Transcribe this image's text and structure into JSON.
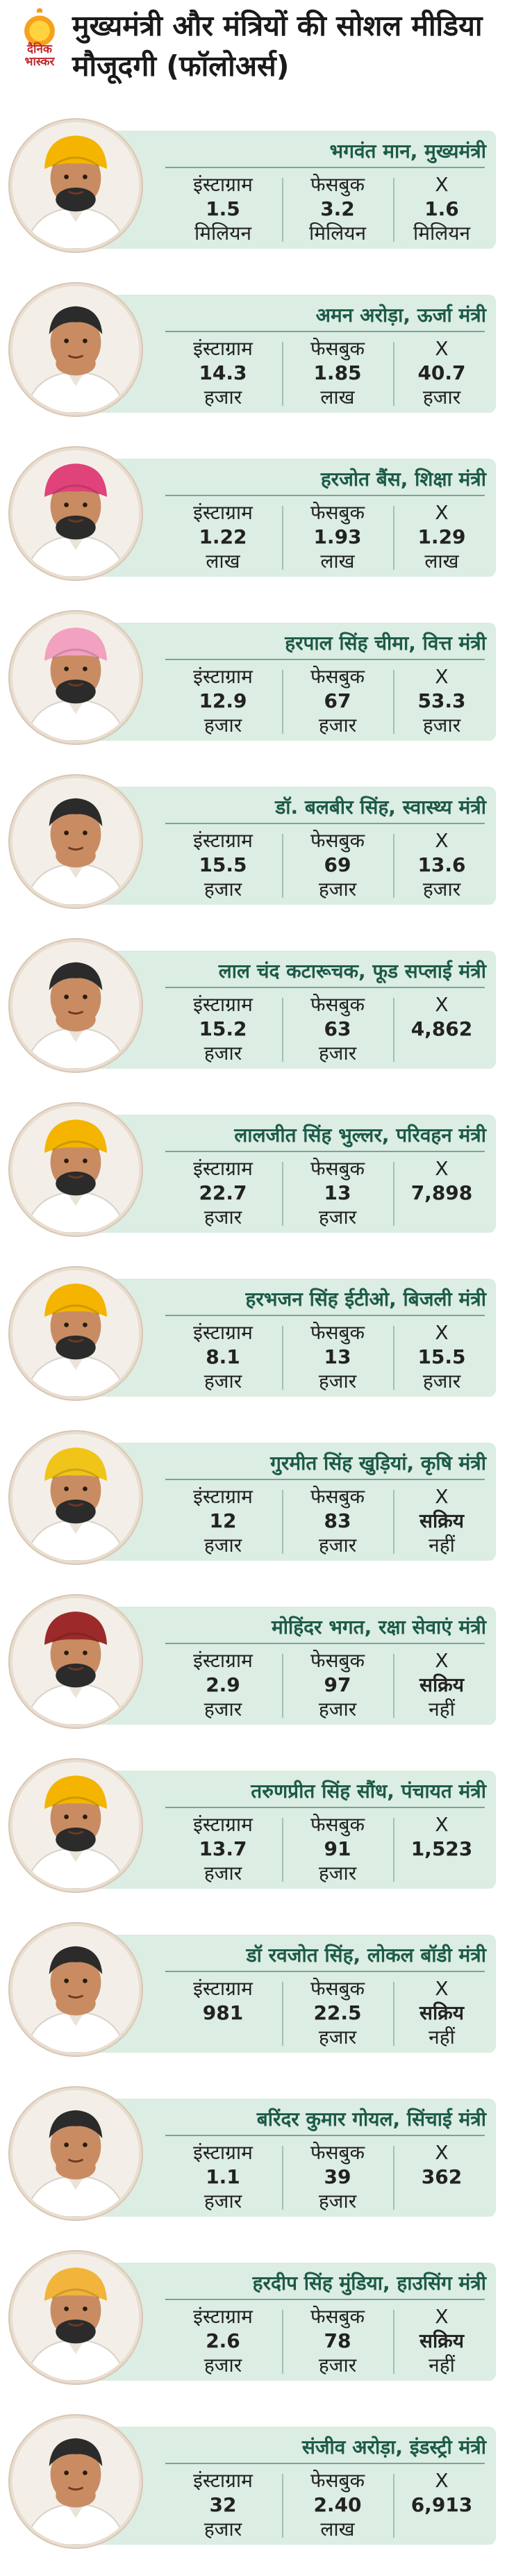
{
  "brand": {
    "logo_text_line1": "दैनिक",
    "logo_text_line2": "भास्कर"
  },
  "title": "मुख्यमंत्री और मंत्रियों की सोशल मीडिया मौजूदगी (फॉलोअर्स)",
  "labels": {
    "instagram": "इंस्टाग्राम",
    "facebook": "फेसबुक",
    "x": "X"
  },
  "colors": {
    "card_bg": "#dcede3",
    "name_text": "#1c5a48",
    "accent_logo": "#c0282d"
  },
  "entries": [
    {
      "name": "भगवंत मान, मुख्यमंत्री",
      "turban": "#f4b400",
      "instagram": {
        "value": "1.5",
        "unit": "मिलियन"
      },
      "facebook": {
        "value": "3.2",
        "unit": "मिलियन"
      },
      "x": {
        "value": "1.6",
        "unit": "मिलियन"
      }
    },
    {
      "name": "अमन अरोड़ा, ऊर्जा मंत्री",
      "turban": "",
      "instagram": {
        "value": "14.3",
        "unit": "हजार"
      },
      "facebook": {
        "value": "1.85",
        "unit": "लाख"
      },
      "x": {
        "value": "40.7",
        "unit": "हजार"
      }
    },
    {
      "name": "हरजोत बैंस, शिक्षा मंत्री",
      "turban": "#e0427a",
      "instagram": {
        "value": "1.22",
        "unit": "लाख"
      },
      "facebook": {
        "value": "1.93",
        "unit": "लाख"
      },
      "x": {
        "value": "1.29",
        "unit": "लाख"
      }
    },
    {
      "name": "हरपाल सिंह चीमा, वित्त मंत्री",
      "turban": "#f2a1c0",
      "instagram": {
        "value": "12.9",
        "unit": "हजार"
      },
      "facebook": {
        "value": "67",
        "unit": "हजार"
      },
      "x": {
        "value": "53.3",
        "unit": "हजार"
      }
    },
    {
      "name": "डॉ. बलबीर सिंह, स्वास्थ्य मंत्री",
      "turban": "",
      "instagram": {
        "value": "15.5",
        "unit": "हजार"
      },
      "facebook": {
        "value": "69",
        "unit": "हजार"
      },
      "x": {
        "value": "13.6",
        "unit": "हजार"
      }
    },
    {
      "name": "लाल चंद कटारूचक, फूड सप्लाई मंत्री",
      "turban": "",
      "instagram": {
        "value": "15.2",
        "unit": "हजार"
      },
      "facebook": {
        "value": "63",
        "unit": "हजार"
      },
      "x": {
        "value": "4,862",
        "unit": ""
      }
    },
    {
      "name": "लालजीत सिंह भुल्लर, परिवहन मंत्री",
      "turban": "#f4b400",
      "instagram": {
        "value": "22.7",
        "unit": "हजार"
      },
      "facebook": {
        "value": "13",
        "unit": "हजार"
      },
      "x": {
        "value": "7,898",
        "unit": ""
      }
    },
    {
      "name": "हरभजन सिंह ईटीओ, बिजली मंत्री",
      "turban": "#f4b400",
      "instagram": {
        "value": "8.1",
        "unit": "हजार"
      },
      "facebook": {
        "value": "13",
        "unit": "हजार"
      },
      "x": {
        "value": "15.5",
        "unit": "हजार"
      }
    },
    {
      "name": "गुरमीत सिंह खुड़ियां, कृषि मंत्री",
      "turban": "#f0c419",
      "instagram": {
        "value": "12",
        "unit": "हजार"
      },
      "facebook": {
        "value": "83",
        "unit": "हजार"
      },
      "x": {
        "value": "सक्रिय",
        "unit": "नहीं"
      }
    },
    {
      "name": "मोहिंदर भगत, रक्षा सेवाएं मंत्री",
      "turban": "#9c2a2a",
      "instagram": {
        "value": "2.9",
        "unit": "हजार"
      },
      "facebook": {
        "value": "97",
        "unit": "हजार"
      },
      "x": {
        "value": "सक्रिय",
        "unit": "नहीं"
      }
    },
    {
      "name": "तरुणप्रीत सिंह सौंध, पंचायत मंत्री",
      "turban": "#f4b400",
      "instagram": {
        "value": "13.7",
        "unit": "हजार"
      },
      "facebook": {
        "value": "91",
        "unit": "हजार"
      },
      "x": {
        "value": "1,523",
        "unit": ""
      }
    },
    {
      "name": "डॉ रवजोत सिंह, लोकल बॉडी मंत्री",
      "turban": "",
      "instagram": {
        "value": "981",
        "unit": ""
      },
      "facebook": {
        "value": "22.5",
        "unit": "हजार"
      },
      "x": {
        "value": "सक्रिय",
        "unit": "नहीं"
      }
    },
    {
      "name": "बरिंदर कुमार गोयल, सिंचाई मंत्री",
      "turban": "",
      "instagram": {
        "value": "1.1",
        "unit": "हजार"
      },
      "facebook": {
        "value": "39",
        "unit": "हजार"
      },
      "x": {
        "value": "362",
        "unit": ""
      }
    },
    {
      "name": "हरदीप सिंह मुंडिया, हाउसिंग मंत्री",
      "turban": "#f2b43a",
      "instagram": {
        "value": "2.6",
        "unit": "हजार"
      },
      "facebook": {
        "value": "78",
        "unit": "हजार"
      },
      "x": {
        "value": "सक्रिय",
        "unit": "नहीं"
      }
    },
    {
      "name": "संजीव अरोड़ा, इंडस्ट्री मंत्री",
      "turban": "",
      "instagram": {
        "value": "32",
        "unit": "हजार"
      },
      "facebook": {
        "value": "2.40",
        "unit": "लाख"
      },
      "x": {
        "value": "6,913",
        "unit": ""
      }
    }
  ]
}
